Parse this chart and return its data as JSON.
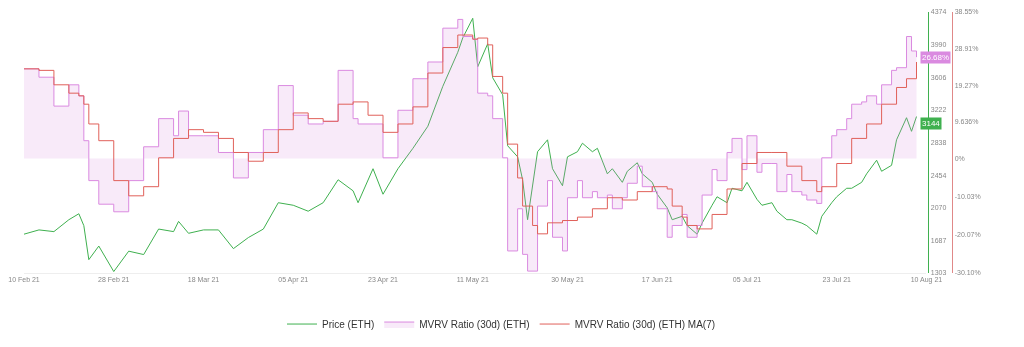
{
  "chart_data": {
    "type": "line",
    "x": [
      "2021-02-10",
      "2021-02-13",
      "2021-02-16",
      "2021-02-19",
      "2021-02-21",
      "2021-02-22",
      "2021-02-23",
      "2021-02-25",
      "2021-02-28",
      "2021-03-03",
      "2021-03-06",
      "2021-03-09",
      "2021-03-12",
      "2021-03-13",
      "2021-03-15",
      "2021-03-18",
      "2021-03-21",
      "2021-03-24",
      "2021-03-27",
      "2021-03-30",
      "2021-04-02",
      "2021-04-05",
      "2021-04-08",
      "2021-04-11",
      "2021-04-14",
      "2021-04-17",
      "2021-04-18",
      "2021-04-21",
      "2021-04-23",
      "2021-04-26",
      "2021-04-29",
      "2021-05-02",
      "2021-05-05",
      "2021-05-08",
      "2021-05-09",
      "2021-05-11",
      "2021-05-12",
      "2021-05-14",
      "2021-05-15",
      "2021-05-17",
      "2021-05-18",
      "2021-05-20",
      "2021-05-21",
      "2021-05-22",
      "2021-05-24",
      "2021-05-26",
      "2021-05-27",
      "2021-05-29",
      "2021-05-30",
      "2021-06-01",
      "2021-06-02",
      "2021-06-04",
      "2021-06-05",
      "2021-06-07",
      "2021-06-08",
      "2021-06-10",
      "2021-06-11",
      "2021-06-13",
      "2021-06-14",
      "2021-06-16",
      "2021-06-17",
      "2021-06-19",
      "2021-06-20",
      "2021-06-22",
      "2021-06-23",
      "2021-06-25",
      "2021-06-26",
      "2021-06-28",
      "2021-06-29",
      "2021-07-01",
      "2021-07-02",
      "2021-07-04",
      "2021-07-05",
      "2021-07-07",
      "2021-07-08",
      "2021-07-10",
      "2021-07-11",
      "2021-07-13",
      "2021-07-14",
      "2021-07-16",
      "2021-07-17",
      "2021-07-19",
      "2021-07-20",
      "2021-07-22",
      "2021-07-23",
      "2021-07-25",
      "2021-07-26",
      "2021-07-28",
      "2021-07-29",
      "2021-07-31",
      "2021-08-01",
      "2021-08-03",
      "2021-08-04",
      "2021-08-06",
      "2021-08-07",
      "2021-08-08"
    ],
    "series": [
      {
        "name": "Price (ETH)",
        "color": "#3fb04f",
        "values": [
          1760,
          1810,
          1790,
          1930,
          2000,
          1860,
          1460,
          1620,
          1320,
          1560,
          1520,
          1820,
          1790,
          1910,
          1770,
          1810,
          1810,
          1590,
          1720,
          1820,
          2130,
          2100,
          2030,
          2130,
          2400,
          2270,
          2130,
          2530,
          2230,
          2530,
          2770,
          3030,
          3500,
          3900,
          4070,
          4300,
          3730,
          4000,
          3600,
          3400,
          2800,
          2670,
          2400,
          1930,
          2730,
          2870,
          2530,
          2330,
          2670,
          2730,
          2830,
          2730,
          2770,
          2470,
          2530,
          2370,
          2500,
          2600,
          2470,
          2370,
          2230,
          2070,
          1930,
          1970,
          1860,
          1760,
          1890,
          2100,
          2200,
          2130,
          2300,
          2270,
          2370,
          2170,
          2100,
          2130,
          2030,
          1930,
          1930,
          1890,
          1860,
          1760,
          1970,
          2130,
          2200,
          2300,
          2300,
          2370,
          2470,
          2630,
          2500,
          2570,
          2870,
          3130,
          2970,
          3144
        ],
        "value_labels": [
          null,
          null,
          null,
          null,
          null,
          null,
          null,
          null,
          null,
          null,
          null,
          null,
          null,
          null,
          null,
          null,
          null,
          null,
          null,
          null,
          null,
          null,
          null,
          null,
          null,
          null,
          null,
          null,
          null,
          null,
          null,
          null,
          null,
          null,
          null,
          null,
          null,
          null,
          null,
          null,
          null,
          null,
          null,
          null,
          null,
          null,
          null,
          null,
          null,
          null,
          null,
          null,
          null,
          null,
          null,
          null,
          null,
          null,
          null,
          null,
          null,
          null,
          null,
          null,
          null,
          null,
          null,
          null,
          null,
          null,
          null,
          null,
          null,
          null,
          null,
          null,
          null,
          null,
          null,
          null,
          null,
          null,
          null,
          null,
          null,
          null,
          null,
          null,
          null,
          null,
          null,
          null,
          null,
          null,
          null,
          "3144"
        ]
      },
      {
        "name": "MVRV Ratio (30d) (ETH)",
        "type": "area",
        "axis": "y2",
        "color": "#da8ae0",
        "values": [
          23.6,
          21.4,
          13.8,
          19.4,
          16.5,
          4.7,
          -5.8,
          -12.0,
          -14.0,
          -5.8,
          3.1,
          10.5,
          6.0,
          12.5,
          6.0,
          6.0,
          1.6,
          -5.1,
          1.6,
          7.6,
          19.2,
          11.4,
          9.1,
          9.8,
          23.2,
          10.5,
          9.1,
          9.1,
          0.2,
          12.7,
          21.0,
          25.4,
          34.3,
          36.6,
          32.1,
          31.4,
          17.2,
          16.5,
          10.5,
          0.2,
          -24.3,
          -13.2,
          -25.2,
          -29.6,
          -12.5,
          -5.8,
          -20.7,
          -24.3,
          -10.3,
          -5.8,
          -10.3,
          -8.7,
          -10.3,
          -9.6,
          -13.2,
          -10.3,
          -6.5,
          -2.0,
          -7.4,
          -8.7,
          -13.2,
          -20.7,
          -17.6,
          -14.7,
          -20.7,
          -17.6,
          -9.6,
          -2.9,
          -5.8,
          1.6,
          5.3,
          -2.9,
          6.0,
          -3.6,
          -1.3,
          -1.3,
          -8.7,
          -4.2,
          -8.7,
          -9.6,
          -10.9,
          -11.8,
          0.2,
          6.0,
          7.6,
          10.5,
          14.3,
          14.9,
          16.5,
          14.3,
          19.4,
          23.2,
          23.9,
          32.1,
          28.3,
          26.68
        ],
        "value_labels": [
          null,
          null,
          null,
          null,
          null,
          null,
          null,
          null,
          null,
          null,
          null,
          null,
          null,
          null,
          null,
          null,
          null,
          null,
          null,
          null,
          null,
          null,
          null,
          null,
          null,
          null,
          null,
          null,
          null,
          null,
          null,
          null,
          null,
          null,
          null,
          null,
          null,
          null,
          null,
          null,
          null,
          null,
          null,
          null,
          null,
          null,
          null,
          null,
          null,
          null,
          null,
          null,
          null,
          null,
          null,
          null,
          null,
          null,
          null,
          null,
          null,
          null,
          null,
          null,
          null,
          null,
          null,
          null,
          null,
          null,
          null,
          null,
          null,
          null,
          null,
          null,
          null,
          null,
          null,
          null,
          null,
          null,
          null,
          null,
          null,
          null,
          null,
          null,
          null,
          null,
          null,
          null,
          null,
          null,
          null,
          "26.68%"
        ]
      },
      {
        "name": "MVRV Ratio (30d) (ETH) MA(7)",
        "type": "step",
        "axis": "y2",
        "color": "#e0605a",
        "x": [
          "2021-02-10",
          "2021-02-13",
          "2021-02-16",
          "2021-02-19",
          "2021-02-21",
          "2021-02-22",
          "2021-02-23",
          "2021-02-25",
          "2021-02-28",
          "2021-03-03",
          "2021-03-06",
          "2021-03-09",
          "2021-03-12",
          "2021-03-15",
          "2021-03-18",
          "2021-03-21",
          "2021-03-24",
          "2021-03-27",
          "2021-03-30",
          "2021-04-02",
          "2021-04-05",
          "2021-04-08",
          "2021-04-11",
          "2021-04-14",
          "2021-04-17",
          "2021-04-20",
          "2021-04-23",
          "2021-04-26",
          "2021-04-29",
          "2021-05-02",
          "2021-05-05",
          "2021-05-08",
          "2021-05-11",
          "2021-05-12",
          "2021-05-14",
          "2021-05-15",
          "2021-05-17",
          "2021-05-18",
          "2021-05-20",
          "2021-05-21",
          "2021-05-23",
          "2021-05-24",
          "2021-05-26",
          "2021-05-29",
          "2021-06-01",
          "2021-06-04",
          "2021-06-07",
          "2021-06-10",
          "2021-06-13",
          "2021-06-16",
          "2021-06-19",
          "2021-06-20",
          "2021-06-22",
          "2021-06-23",
          "2021-06-25",
          "2021-06-28",
          "2021-07-01",
          "2021-07-04",
          "2021-07-07",
          "2021-07-10",
          "2021-07-13",
          "2021-07-16",
          "2021-07-19",
          "2021-07-20",
          "2021-07-23",
          "2021-07-26",
          "2021-07-29",
          "2021-08-01",
          "2021-08-04",
          "2021-08-06",
          "2021-08-08"
        ],
        "values": [
          23.6,
          23.2,
          19.4,
          17.2,
          16.5,
          14.3,
          9.1,
          4.7,
          -5.8,
          -9.8,
          -7.4,
          0.2,
          5.3,
          7.6,
          6.9,
          5.3,
          1.6,
          -0.7,
          1.6,
          7.6,
          12.0,
          10.5,
          9.8,
          14.3,
          14.9,
          11.4,
          6.9,
          9.1,
          13.6,
          22.5,
          29.2,
          32.5,
          31.4,
          31.7,
          29.9,
          21.6,
          17.2,
          3.8,
          -5.1,
          -12.5,
          -17.6,
          -19.8,
          -16.9,
          -16.3,
          -15.4,
          -13.2,
          -10.3,
          -10.9,
          -8.7,
          -7.4,
          -8.0,
          -12.5,
          -15.4,
          -17.6,
          -18.5,
          -14.7,
          -8.0,
          -1.3,
          1.6,
          1.6,
          -2.0,
          -5.8,
          -8.7,
          -7.4,
          -1.3,
          5.3,
          9.1,
          14.3,
          18.7,
          21.0,
          25.4
        ]
      }
    ],
    "xlim": [
      "2021-02-10",
      "2021-08-10"
    ],
    "xticks": [
      {
        "value": "2021-02-10",
        "label": "10 Feb 21"
      },
      {
        "value": "2021-02-28",
        "label": "28 Feb 21"
      },
      {
        "value": "2021-03-18",
        "label": "18 Mar 21"
      },
      {
        "value": "2021-04-05",
        "label": "05 Apr 21"
      },
      {
        "value": "2021-04-23",
        "label": "23 Apr 21"
      },
      {
        "value": "2021-05-11",
        "label": "11 May 21"
      },
      {
        "value": "2021-05-30",
        "label": "30 May 21"
      },
      {
        "value": "2021-06-17",
        "label": "17 Jun 21"
      },
      {
        "value": "2021-07-05",
        "label": "05 Jul 21"
      },
      {
        "value": "2021-07-23",
        "label": "23 Jul 21"
      },
      {
        "value": "2021-08-10",
        "label": "10 Aug 21"
      }
    ],
    "ylim": [
      1303,
      4374
    ],
    "yticks": [
      1303,
      1687,
      2070,
      2454,
      2838,
      3222,
      3606,
      3990,
      4374
    ],
    "y2lim": [
      -30.1,
      38.55
    ],
    "y2ticks": [
      {
        "value": -30.1,
        "label": "-30.10%"
      },
      {
        "value": -20.07,
        "label": "-20.07%"
      },
      {
        "value": -10.03,
        "label": "-10.03%"
      },
      {
        "value": 0,
        "label": "0%"
      },
      {
        "value": 9.636,
        "label": "9.636%"
      },
      {
        "value": 19.27,
        "label": "19.27%"
      },
      {
        "value": 28.91,
        "label": "28.91%"
      },
      {
        "value": 38.55,
        "label": "38.55%"
      }
    ],
    "legend": "bottom"
  }
}
